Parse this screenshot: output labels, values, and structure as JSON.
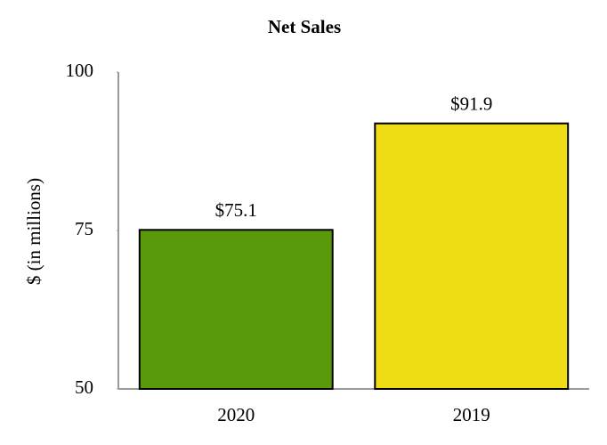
{
  "chart_data": {
    "type": "bar",
    "title": "Net Sales",
    "y_label": "$ (in millions)",
    "categories": [
      "2020",
      "2019"
    ],
    "values": [
      75.1,
      91.9
    ],
    "value_labels": [
      "$75.1",
      "$91.9"
    ],
    "colors": [
      "#5a9a0a",
      "#eedd14"
    ],
    "ylim": [
      50,
      100
    ],
    "yticks": [
      50,
      75,
      100
    ],
    "grid": false
  }
}
